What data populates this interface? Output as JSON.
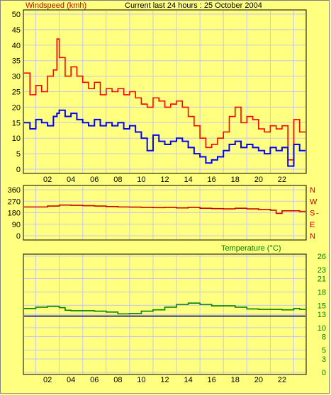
{
  "header": {
    "windspeed_label": "Windspeed (kmh)",
    "title": "Current last 24 hours : 25 October 2004"
  },
  "chart_data": [
    {
      "type": "line",
      "name": "windspeed",
      "ylabel": "Windspeed (kmh)",
      "ylim": [
        0,
        50
      ],
      "yticks": [
        0,
        5,
        10,
        15,
        20,
        25,
        30,
        35,
        40,
        45,
        50
      ],
      "xlim": [
        0,
        24
      ],
      "xticks": [
        "02",
        "04",
        "06",
        "08",
        "10",
        "12",
        "14",
        "16",
        "18",
        "20",
        "22"
      ],
      "xtick_values": [
        2,
        4,
        6,
        8,
        10,
        12,
        14,
        16,
        18,
        20,
        22
      ],
      "grid": true,
      "series": [
        {
          "name": "gust",
          "color": "#ff0000",
          "x": [
            0,
            0.5,
            1,
            1.5,
            2,
            2.5,
            2.8,
            3,
            3.5,
            4,
            4.5,
            5,
            5.5,
            6,
            6.5,
            7,
            7.5,
            8,
            8.5,
            9,
            9.5,
            10,
            10.5,
            11,
            11.5,
            12,
            12.5,
            13,
            13.5,
            14,
            14.5,
            15,
            15.5,
            16,
            16.5,
            17,
            17.5,
            18,
            18.5,
            19,
            19.5,
            20,
            20.5,
            21,
            21.5,
            22,
            22.5,
            23,
            23.5
          ],
          "values": [
            31,
            24,
            27,
            25,
            30,
            32,
            42,
            36,
            30,
            33,
            30,
            28,
            26,
            28,
            24,
            26,
            25,
            26,
            24,
            25,
            23,
            21,
            20,
            23,
            22,
            20,
            21,
            22,
            20,
            17,
            14,
            10,
            7,
            8,
            10,
            12,
            17,
            20,
            15,
            17,
            16,
            13,
            12,
            14,
            13,
            14,
            3,
            16,
            12
          ]
        },
        {
          "name": "average",
          "color": "#0000ff",
          "x": [
            0,
            0.5,
            1,
            1.5,
            2,
            2.5,
            2.8,
            3,
            3.5,
            4,
            4.5,
            5,
            5.5,
            6,
            6.5,
            7,
            7.5,
            8,
            8.5,
            9,
            9.5,
            10,
            10.5,
            11,
            11.5,
            12,
            12.5,
            13,
            13.5,
            14,
            14.5,
            15,
            15.5,
            16,
            16.5,
            17,
            17.5,
            18,
            18.5,
            19,
            19.5,
            20,
            20.5,
            21,
            21.5,
            22,
            22.5,
            23,
            23.5
          ],
          "values": [
            15,
            13,
            16,
            15,
            14,
            17,
            18,
            19,
            17,
            18,
            16,
            15,
            14,
            16,
            14,
            15,
            14,
            15,
            13,
            14,
            12,
            10,
            6,
            11,
            9,
            8,
            9,
            10,
            9,
            7,
            5,
            4,
            2,
            3,
            4,
            6,
            8,
            9,
            7,
            8,
            7,
            6,
            5,
            7,
            6,
            7,
            1,
            8,
            6
          ]
        }
      ]
    },
    {
      "type": "line",
      "name": "wind-direction",
      "ylim": [
        0,
        360
      ],
      "yticks": [
        0,
        90,
        180,
        270,
        360
      ],
      "compass_labels": [
        "N",
        "W",
        "S",
        "E",
        "N"
      ],
      "xlim": [
        0,
        24
      ],
      "grid": true,
      "series": [
        {
          "name": "direction",
          "color": "#cc0000",
          "x": [
            0,
            1,
            2,
            3,
            4,
            5,
            6,
            7,
            8,
            9,
            10,
            11,
            12,
            13,
            14,
            15,
            16,
            17,
            18,
            19,
            20,
            21,
            21.5,
            22,
            23,
            23.5
          ],
          "values": [
            225,
            225,
            232,
            240,
            238,
            235,
            232,
            228,
            225,
            224,
            222,
            220,
            222,
            218,
            222,
            215,
            212,
            210,
            215,
            210,
            205,
            200,
            175,
            195,
            195,
            190
          ]
        }
      ]
    },
    {
      "type": "line",
      "name": "temperature",
      "title": "Temperature (°C)",
      "ylim": [
        0,
        26
      ],
      "yticks": [
        0,
        3,
        5,
        8,
        10,
        13,
        15,
        18,
        21,
        23,
        26
      ],
      "xlim": [
        0,
        24
      ],
      "xticks": [
        "02",
        "04",
        "06",
        "08",
        "10",
        "12",
        "14",
        "16",
        "18",
        "20",
        "22"
      ],
      "xtick_values": [
        2,
        4,
        6,
        8,
        10,
        12,
        14,
        16,
        18,
        20,
        22
      ],
      "grid": true,
      "series": [
        {
          "name": "temperature",
          "color": "#008000",
          "x": [
            0,
            1,
            2,
            3,
            3.5,
            4,
            5,
            6,
            7,
            8,
            9,
            10,
            11,
            12,
            13,
            14,
            15,
            16,
            17,
            18,
            19,
            20,
            21,
            22,
            22.5,
            23,
            23.5
          ],
          "values": [
            14.3,
            14.6,
            14.8,
            14.5,
            13.9,
            13.8,
            13.8,
            13.7,
            13.5,
            13.1,
            13.2,
            13.7,
            14.0,
            14.6,
            15.2,
            15.5,
            15.2,
            14.9,
            14.9,
            14.6,
            14.2,
            14.1,
            14.1,
            14.0,
            14.0,
            14.3,
            14.1
          ]
        },
        {
          "name": "reference",
          "color": "#000080",
          "x": [
            0,
            24
          ],
          "values": [
            12.6,
            12.6
          ]
        }
      ]
    }
  ]
}
